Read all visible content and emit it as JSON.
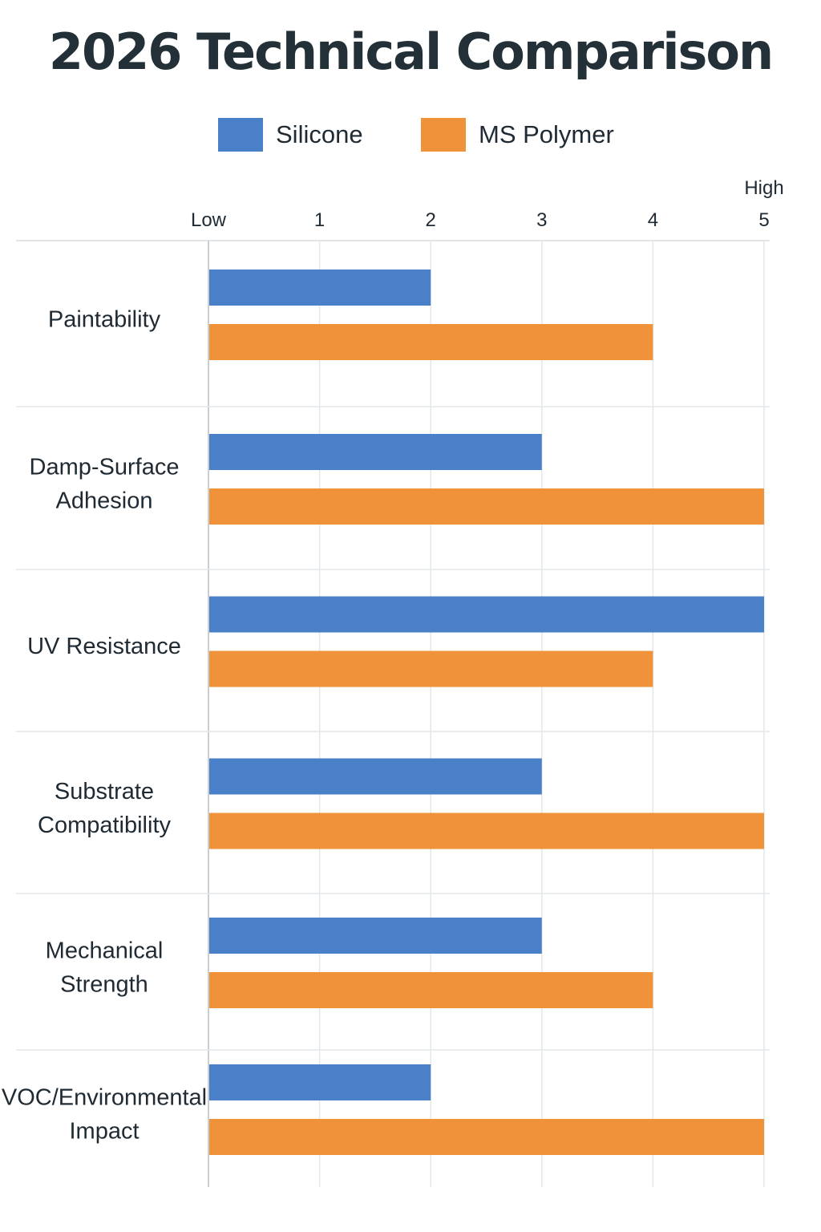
{
  "chart_data": {
    "type": "bar",
    "orientation": "horizontal",
    "title": "2026 Technical Comparison",
    "categories": [
      [
        "Paintability"
      ],
      [
        "Damp-Surface",
        "Adhesion"
      ],
      [
        "UV Resistance"
      ],
      [
        "Substrate",
        "Compatibility"
      ],
      [
        "Mechanical",
        "Strength"
      ],
      [
        "VOC/Environmental",
        "Impact"
      ]
    ],
    "series": [
      {
        "name": "Silicone",
        "color": "#4a80c8",
        "values": [
          2,
          3,
          5,
          3,
          3,
          2
        ]
      },
      {
        "name": "MS Polymer",
        "color": "#f0923a",
        "values": [
          4,
          5,
          4,
          5,
          4,
          5
        ]
      }
    ],
    "xlim": [
      0,
      5
    ],
    "ticks": [
      {
        "value": 0,
        "label": "Low"
      },
      {
        "value": 1,
        "label": "1"
      },
      {
        "value": 2,
        "label": "2"
      },
      {
        "value": 3,
        "label": "3"
      },
      {
        "value": 4,
        "label": "4"
      },
      {
        "value": 5,
        "label": "5"
      }
    ],
    "axis_end_label": "High",
    "grid": true,
    "legend_position": "top"
  }
}
